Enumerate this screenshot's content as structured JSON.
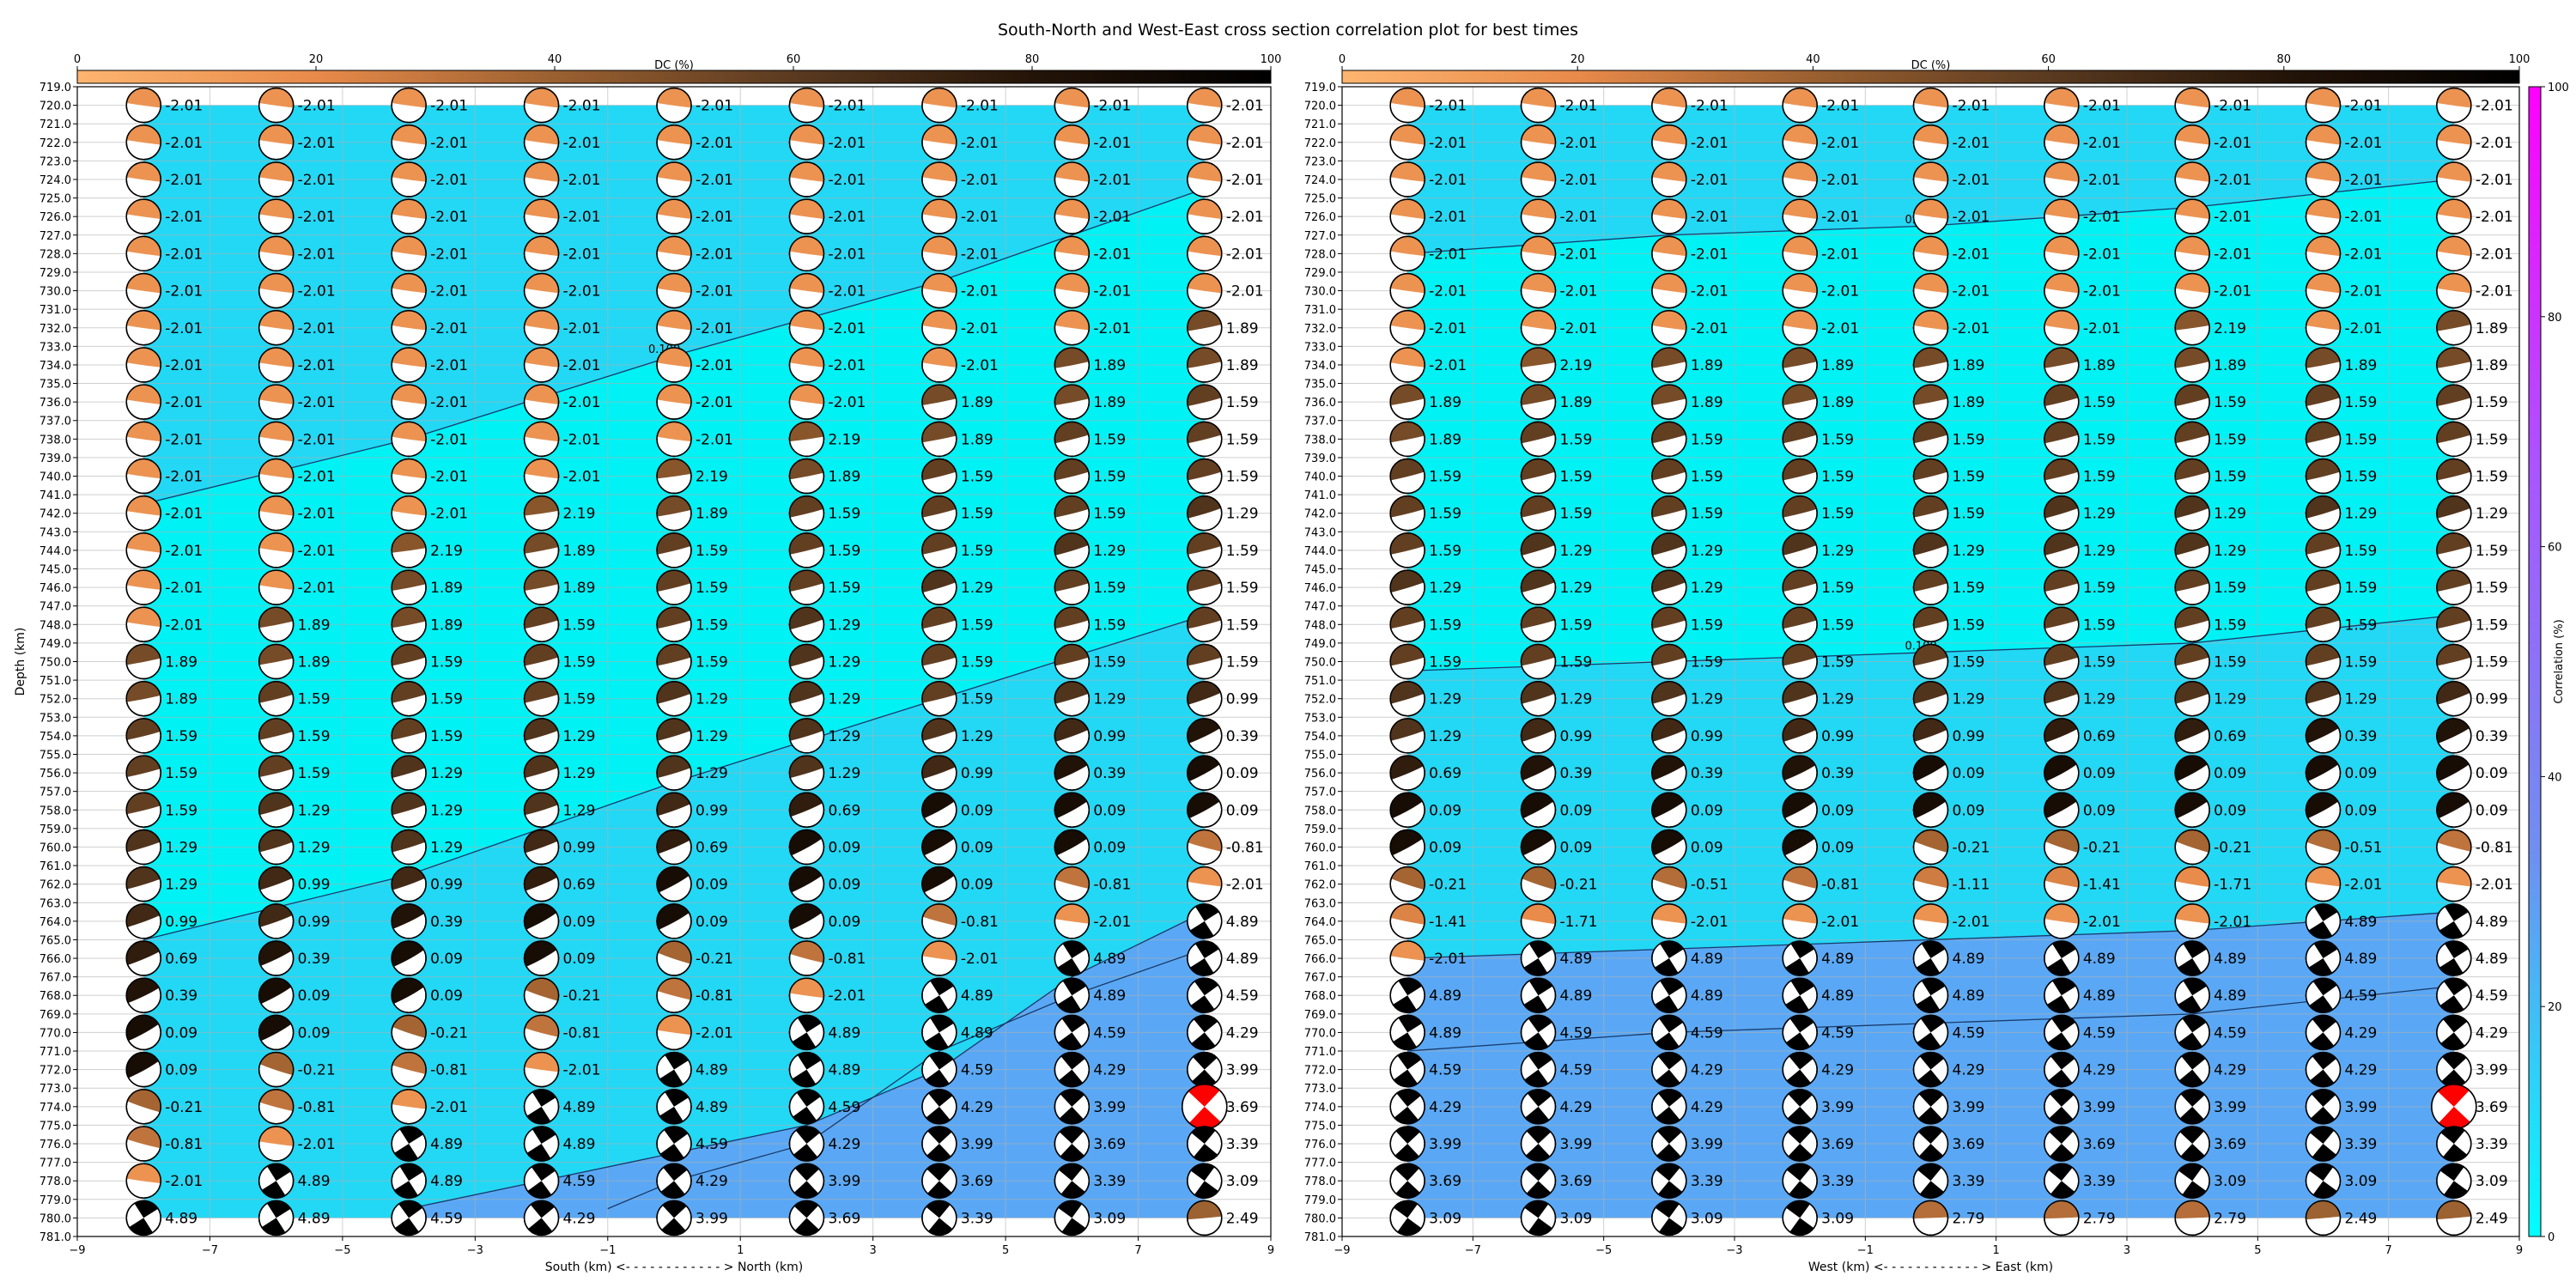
{
  "figure": {
    "title": "South-North and West-East cross section correlation plot for best times"
  },
  "colors": {
    "dc_scale": [
      "#fdb56f",
      "#e88a4a",
      "#9a6030",
      "#5a3a20",
      "#241408",
      "#000000"
    ],
    "corr_scale": [
      "#00ffff",
      "#6f8ff0",
      "#aa55ff",
      "#ff00ff"
    ],
    "bg_low": "#00f2f5",
    "bg_mid": "#22d8f5",
    "bg_high": "#5aa8f5",
    "best": "#ff0000"
  },
  "chart_data": [
    {
      "type": "heatmap",
      "panel": "south-north",
      "xlabel": "South (km) <- - - - - - - - - - - - > North (km)",
      "ylabel": "Depth (km)",
      "xlim": [
        -9,
        9
      ],
      "ylim": [
        781,
        719
      ],
      "x_ticks": [
        "−9",
        "−7",
        "−5",
        "−3",
        "−1",
        "1",
        "3",
        "5",
        "7",
        "9"
      ],
      "depth_ticks_start": 719,
      "depth_ticks_end": 781,
      "x_positions": [
        -8,
        -6,
        -4,
        -2,
        0,
        2,
        4,
        6,
        8
      ],
      "depths": [
        720,
        722,
        724,
        726,
        728,
        730,
        732,
        734,
        736,
        738,
        740,
        742,
        744,
        746,
        748,
        750,
        752,
        754,
        756,
        758,
        760,
        762,
        764,
        766,
        768,
        770,
        772,
        774,
        776,
        778,
        780
      ],
      "grid": true,
      "dc_colorbar": {
        "label": "DC (%)",
        "ticks": [
          "0",
          "20",
          "40",
          "60",
          "80",
          "100"
        ],
        "placement": "top"
      },
      "contours": [
        {
          "label": "0.100",
          "points": [
            [
              -8,
              741.5
            ],
            [
              -4,
              738
            ],
            [
              0,
              733.5
            ],
            [
              4,
              729.5
            ],
            [
              8,
              724.5
            ]
          ]
        },
        {
          "label": "",
          "points": [
            [
              -8,
              765
            ],
            [
              -4,
              761.5
            ],
            [
              0,
              756.5
            ],
            [
              4,
              752
            ],
            [
              8,
              747.5
            ]
          ]
        },
        {
          "label": "",
          "points": [
            [
              -4,
              779.5
            ],
            [
              0,
              776.5
            ],
            [
              2,
              775
            ],
            [
              4,
              772
            ],
            [
              6,
              767
            ],
            [
              8,
              763.5
            ]
          ]
        },
        {
          "label": "",
          "points": [
            [
              -1,
              779.5
            ],
            [
              0,
              778
            ],
            [
              2,
              776
            ],
            [
              4,
              771
            ],
            [
              6,
              768
            ],
            [
              8,
              765.5
            ]
          ]
        }
      ],
      "beachball_values": [
        [
          "-2.01",
          "-2.01",
          "-2.01",
          "-2.01",
          "-2.01",
          "-2.01",
          "-2.01",
          "-2.01",
          "-2.01"
        ],
        [
          "-2.01",
          "-2.01",
          "-2.01",
          "-2.01",
          "-2.01",
          "-2.01",
          "-2.01",
          "-2.01",
          "-2.01"
        ],
        [
          "-2.01",
          "-2.01",
          "-2.01",
          "-2.01",
          "-2.01",
          "-2.01",
          "-2.01",
          "-2.01",
          "-2.01"
        ],
        [
          "-2.01",
          "-2.01",
          "-2.01",
          "-2.01",
          "-2.01",
          "-2.01",
          "-2.01",
          "-2.01",
          "-2.01"
        ],
        [
          "-2.01",
          "-2.01",
          "-2.01",
          "-2.01",
          "-2.01",
          "-2.01",
          "-2.01",
          "-2.01",
          "-2.01"
        ],
        [
          "-2.01",
          "-2.01",
          "-2.01",
          "-2.01",
          "-2.01",
          "-2.01",
          "-2.01",
          "-2.01",
          "-2.01"
        ],
        [
          "-2.01",
          "-2.01",
          "-2.01",
          "-2.01",
          "-2.01",
          "-2.01",
          "-2.01",
          "-2.01",
          "1.89"
        ],
        [
          "-2.01",
          "-2.01",
          "-2.01",
          "-2.01",
          "-2.01",
          "-2.01",
          "-2.01",
          "1.89",
          "1.89"
        ],
        [
          "-2.01",
          "-2.01",
          "-2.01",
          "-2.01",
          "-2.01",
          "-2.01",
          "1.89",
          "1.89",
          "1.59"
        ],
        [
          "-2.01",
          "-2.01",
          "-2.01",
          "-2.01",
          "-2.01",
          "2.19",
          "1.89",
          "1.59",
          "1.59"
        ],
        [
          "-2.01",
          "-2.01",
          "-2.01",
          "-2.01",
          "2.19",
          "1.89",
          "1.59",
          "1.59",
          "1.59"
        ],
        [
          "-2.01",
          "-2.01",
          "-2.01",
          "2.19",
          "1.89",
          "1.59",
          "1.59",
          "1.59",
          "1.29"
        ],
        [
          "-2.01",
          "-2.01",
          "2.19",
          "1.89",
          "1.59",
          "1.59",
          "1.59",
          "1.29",
          "1.59"
        ],
        [
          "-2.01",
          "-2.01",
          "1.89",
          "1.89",
          "1.59",
          "1.59",
          "1.29",
          "1.59",
          "1.59"
        ],
        [
          "-2.01",
          "1.89",
          "1.89",
          "1.59",
          "1.59",
          "1.29",
          "1.59",
          "1.59",
          "1.59"
        ],
        [
          "1.89",
          "1.89",
          "1.59",
          "1.59",
          "1.59",
          "1.29",
          "1.59",
          "1.59",
          "1.59"
        ],
        [
          "1.89",
          "1.59",
          "1.59",
          "1.59",
          "1.29",
          "1.29",
          "1.59",
          "1.29",
          "0.99"
        ],
        [
          "1.59",
          "1.59",
          "1.59",
          "1.29",
          "1.29",
          "1.29",
          "1.29",
          "0.99",
          "0.39"
        ],
        [
          "1.59",
          "1.59",
          "1.29",
          "1.29",
          "1.29",
          "1.29",
          "0.99",
          "0.39",
          "0.09"
        ],
        [
          "1.59",
          "1.29",
          "1.29",
          "1.29",
          "0.99",
          "0.69",
          "0.09",
          "0.09",
          "0.09"
        ],
        [
          "1.29",
          "1.29",
          "1.29",
          "0.99",
          "0.69",
          "0.09",
          "0.09",
          "0.09",
          "-0.81"
        ],
        [
          "1.29",
          "0.99",
          "0.99",
          "0.69",
          "0.09",
          "0.09",
          "0.09",
          "-0.81",
          "-2.01"
        ],
        [
          "0.99",
          "0.99",
          "0.39",
          "0.09",
          "0.09",
          "0.09",
          "-0.81",
          "-2.01",
          "4.89"
        ],
        [
          "0.69",
          "0.39",
          "0.09",
          "0.09",
          "-0.21",
          "-0.81",
          "-2.01",
          "4.89",
          "4.89"
        ],
        [
          "0.39",
          "0.09",
          "0.09",
          "-0.21",
          "-0.81",
          "-2.01",
          "4.89",
          "4.89",
          "4.59"
        ],
        [
          "0.09",
          "0.09",
          "-0.21",
          "-0.81",
          "-2.01",
          "4.89",
          "4.89",
          "4.59",
          "4.29"
        ],
        [
          "0.09",
          "-0.21",
          "-0.81",
          "-2.01",
          "4.89",
          "4.89",
          "4.59",
          "4.29",
          "3.99"
        ],
        [
          "-0.21",
          "-0.81",
          "-2.01",
          "4.89",
          "4.89",
          "4.59",
          "4.29",
          "3.99",
          "3.69"
        ],
        [
          "-0.81",
          "-2.01",
          "4.89",
          "4.89",
          "4.59",
          "4.29",
          "3.99",
          "3.69",
          "3.39"
        ],
        [
          "-2.01",
          "4.89",
          "4.89",
          "4.59",
          "4.29",
          "3.99",
          "3.69",
          "3.39",
          "3.09"
        ],
        [
          "4.89",
          "4.89",
          "4.59",
          "4.29",
          "3.99",
          "3.69",
          "3.39",
          "3.09",
          "2.49"
        ]
      ],
      "best_solution": {
        "x": 8,
        "depth": 774,
        "value": "3.69"
      }
    },
    {
      "type": "heatmap",
      "panel": "west-east",
      "xlabel": "West (km) <- - - - - - - - - - - - > East (km)",
      "ylabel": "",
      "xlim": [
        -9,
        9
      ],
      "ylim": [
        781,
        719
      ],
      "x_ticks": [
        "−9",
        "−7",
        "−5",
        "−3",
        "−1",
        "1",
        "3",
        "5",
        "7",
        "9"
      ],
      "depth_ticks_start": 719,
      "depth_ticks_end": 781,
      "x_positions": [
        -8,
        -6,
        -4,
        -2,
        0,
        2,
        4,
        6,
        8
      ],
      "depths": [
        720,
        722,
        724,
        726,
        728,
        730,
        732,
        734,
        736,
        738,
        740,
        742,
        744,
        746,
        748,
        750,
        752,
        754,
        756,
        758,
        760,
        762,
        764,
        766,
        768,
        770,
        772,
        774,
        776,
        778,
        780
      ],
      "grid": true,
      "dc_colorbar": {
        "label": "DC (%)",
        "ticks": [
          "0",
          "20",
          "40",
          "60",
          "80",
          "100"
        ],
        "placement": "top"
      },
      "correlation_colorbar": {
        "label": "Correlation (%)",
        "ticks": [
          "0",
          "20",
          "40",
          "60",
          "80",
          "100"
        ],
        "placement": "right"
      },
      "contours": [
        {
          "label": "0.100",
          "points": [
            [
              -8,
              728
            ],
            [
              -4,
              727
            ],
            [
              0,
              726.5
            ],
            [
              4,
              725.5
            ],
            [
              8,
              724
            ]
          ]
        },
        {
          "label": "0.100",
          "points": [
            [
              -8,
              750.5
            ],
            [
              -4,
              750
            ],
            [
              0,
              749.5
            ],
            [
              4,
              749
            ],
            [
              8,
              747.5
            ]
          ]
        },
        {
          "label": "",
          "points": [
            [
              -8,
              766
            ],
            [
              -4,
              765.5
            ],
            [
              0,
              765
            ],
            [
              4,
              764.5
            ],
            [
              8,
              763.5
            ]
          ]
        },
        {
          "label": "",
          "points": [
            [
              -8,
              771
            ],
            [
              -4,
              770
            ],
            [
              0,
              769.5
            ],
            [
              4,
              769
            ],
            [
              8,
              767.5
            ]
          ]
        }
      ],
      "beachball_values": [
        [
          "-2.01",
          "-2.01",
          "-2.01",
          "-2.01",
          "-2.01",
          "-2.01",
          "-2.01",
          "-2.01",
          "-2.01"
        ],
        [
          "-2.01",
          "-2.01",
          "-2.01",
          "-2.01",
          "-2.01",
          "-2.01",
          "-2.01",
          "-2.01",
          "-2.01"
        ],
        [
          "-2.01",
          "-2.01",
          "-2.01",
          "-2.01",
          "-2.01",
          "-2.01",
          "-2.01",
          "-2.01",
          "-2.01"
        ],
        [
          "-2.01",
          "-2.01",
          "-2.01",
          "-2.01",
          "-2.01",
          "-2.01",
          "-2.01",
          "-2.01",
          "-2.01"
        ],
        [
          "-2.01",
          "-2.01",
          "-2.01",
          "-2.01",
          "-2.01",
          "-2.01",
          "-2.01",
          "-2.01",
          "-2.01"
        ],
        [
          "-2.01",
          "-2.01",
          "-2.01",
          "-2.01",
          "-2.01",
          "-2.01",
          "-2.01",
          "-2.01",
          "-2.01"
        ],
        [
          "-2.01",
          "-2.01",
          "-2.01",
          "-2.01",
          "-2.01",
          "-2.01",
          "2.19",
          "-2.01",
          "1.89"
        ],
        [
          "-2.01",
          "2.19",
          "1.89",
          "1.89",
          "1.89",
          "1.89",
          "1.89",
          "1.89",
          "1.89"
        ],
        [
          "1.89",
          "1.89",
          "1.89",
          "1.89",
          "1.89",
          "1.59",
          "1.59",
          "1.59",
          "1.59"
        ],
        [
          "1.89",
          "1.59",
          "1.59",
          "1.59",
          "1.59",
          "1.59",
          "1.59",
          "1.59",
          "1.59"
        ],
        [
          "1.59",
          "1.59",
          "1.59",
          "1.59",
          "1.59",
          "1.59",
          "1.59",
          "1.59",
          "1.59"
        ],
        [
          "1.59",
          "1.59",
          "1.59",
          "1.59",
          "1.59",
          "1.29",
          "1.29",
          "1.29",
          "1.29"
        ],
        [
          "1.59",
          "1.29",
          "1.29",
          "1.29",
          "1.29",
          "1.29",
          "1.29",
          "1.59",
          "1.59"
        ],
        [
          "1.29",
          "1.29",
          "1.29",
          "1.59",
          "1.59",
          "1.59",
          "1.59",
          "1.59",
          "1.59"
        ],
        [
          "1.59",
          "1.59",
          "1.59",
          "1.59",
          "1.59",
          "1.59",
          "1.59",
          "1.59",
          "1.59"
        ],
        [
          "1.59",
          "1.59",
          "1.59",
          "1.59",
          "1.59",
          "1.59",
          "1.59",
          "1.59",
          "1.59"
        ],
        [
          "1.29",
          "1.29",
          "1.29",
          "1.29",
          "1.29",
          "1.29",
          "1.29",
          "1.29",
          "0.99"
        ],
        [
          "1.29",
          "0.99",
          "0.99",
          "0.99",
          "0.99",
          "0.69",
          "0.69",
          "0.39",
          "0.39"
        ],
        [
          "0.69",
          "0.39",
          "0.39",
          "0.39",
          "0.09",
          "0.09",
          "0.09",
          "0.09",
          "0.09"
        ],
        [
          "0.09",
          "0.09",
          "0.09",
          "0.09",
          "0.09",
          "0.09",
          "0.09",
          "0.09",
          "0.09"
        ],
        [
          "0.09",
          "0.09",
          "0.09",
          "0.09",
          "-0.21",
          "-0.21",
          "-0.21",
          "-0.51",
          "-0.81"
        ],
        [
          "-0.21",
          "-0.21",
          "-0.51",
          "-0.81",
          "-1.11",
          "-1.41",
          "-1.71",
          "-2.01",
          "-2.01"
        ],
        [
          "-1.41",
          "-1.71",
          "-2.01",
          "-2.01",
          "-2.01",
          "-2.01",
          "-2.01",
          "4.89",
          "4.89"
        ],
        [
          "-2.01",
          "4.89",
          "4.89",
          "4.89",
          "4.89",
          "4.89",
          "4.89",
          "4.89",
          "4.89"
        ],
        [
          "4.89",
          "4.89",
          "4.89",
          "4.89",
          "4.89",
          "4.89",
          "4.89",
          "4.59",
          "4.59"
        ],
        [
          "4.89",
          "4.59",
          "4.59",
          "4.59",
          "4.59",
          "4.59",
          "4.59",
          "4.29",
          "4.29"
        ],
        [
          "4.59",
          "4.59",
          "4.29",
          "4.29",
          "4.29",
          "4.29",
          "4.29",
          "4.29",
          "3.99"
        ],
        [
          "4.29",
          "4.29",
          "4.29",
          "3.99",
          "3.99",
          "3.99",
          "3.99",
          "3.99",
          "3.69"
        ],
        [
          "3.99",
          "3.99",
          "3.99",
          "3.69",
          "3.69",
          "3.69",
          "3.69",
          "3.39",
          "3.39"
        ],
        [
          "3.69",
          "3.69",
          "3.39",
          "3.39",
          "3.39",
          "3.39",
          "3.09",
          "3.09",
          "3.09"
        ],
        [
          "3.09",
          "3.09",
          "3.09",
          "3.09",
          "2.79",
          "2.79",
          "2.79",
          "2.49",
          "2.49"
        ]
      ],
      "best_solution": {
        "x": 8,
        "depth": 774,
        "value": "3.69"
      }
    }
  ]
}
